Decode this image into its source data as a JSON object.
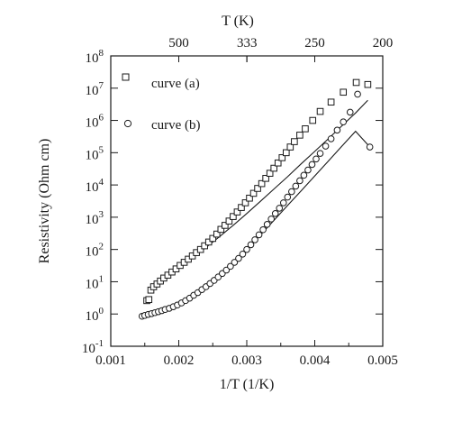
{
  "chart_data": {
    "type": "scatter",
    "title": "",
    "xlabel": "1/T (1/K)",
    "ylabel": "Resistivity (Ohm cm)",
    "x_top_label": "T (K)",
    "xlim": [
      0.001,
      0.005
    ],
    "ylim": [
      0.1,
      100000000
    ],
    "yscale": "log",
    "x_ticks": [
      "0.001",
      "0.002",
      "0.003",
      "0.004",
      "0.005"
    ],
    "x_top_ticks": [
      "500",
      "333",
      "250",
      "200"
    ],
    "y_tick_exponents": [
      "-1",
      "0",
      "1",
      "2",
      "3",
      "4",
      "5",
      "6",
      "7",
      "8"
    ],
    "y_tick_base": "10",
    "grid": false,
    "legend_position": "upper-left",
    "series": [
      {
        "name": "curve (a)",
        "marker": "square",
        "x": [
          0.00153,
          0.00156,
          0.00159,
          0.00163,
          0.00168,
          0.00173,
          0.00178,
          0.00184,
          0.0019,
          0.00196,
          0.00202,
          0.00208,
          0.00214,
          0.0022,
          0.00226,
          0.00232,
          0.00238,
          0.00244,
          0.0025,
          0.00256,
          0.00262,
          0.00268,
          0.00274,
          0.0028,
          0.00286,
          0.00292,
          0.00298,
          0.00304,
          0.0031,
          0.00316,
          0.00322,
          0.00328,
          0.00334,
          0.0034,
          0.00346,
          0.00352,
          0.00358,
          0.00364,
          0.0037,
          0.00378,
          0.00386,
          0.00397,
          0.00408,
          0.00424,
          0.00442,
          0.00461,
          0.00478
        ],
        "y": [
          2.6,
          2.8,
          5.5,
          7,
          8.5,
          10.5,
          13,
          16,
          20,
          25,
          32,
          40,
          50,
          63,
          80,
          100,
          130,
          170,
          220,
          300,
          420,
          560,
          760,
          1050,
          1450,
          2000,
          2800,
          3900,
          5500,
          7800,
          11000,
          16000,
          23000,
          33000,
          48000,
          70000,
          100000,
          150000,
          220000,
          350000,
          550000,
          1000000,
          1900000,
          3700000,
          7500000,
          15000000,
          13000000
        ]
      },
      {
        "name": "curve (b)",
        "marker": "circle",
        "x": [
          0.00146,
          0.0015,
          0.00155,
          0.0016,
          0.00165,
          0.0017,
          0.00175,
          0.0018,
          0.00186,
          0.00192,
          0.00198,
          0.00204,
          0.0021,
          0.00216,
          0.00222,
          0.00228,
          0.00234,
          0.0024,
          0.00246,
          0.00252,
          0.00258,
          0.00264,
          0.0027,
          0.00276,
          0.00282,
          0.00288,
          0.00294,
          0.003,
          0.00306,
          0.00312,
          0.00318,
          0.00324,
          0.0033,
          0.00336,
          0.00342,
          0.00348,
          0.00354,
          0.0036,
          0.00366,
          0.00372,
          0.00378,
          0.00384,
          0.0039,
          0.00396,
          0.00402,
          0.00408,
          0.00416,
          0.00424,
          0.00433,
          0.00442,
          0.00452,
          0.00463,
          0.00481
        ],
        "y": [
          0.85,
          0.9,
          0.97,
          1.03,
          1.1,
          1.18,
          1.27,
          1.38,
          1.5,
          1.68,
          1.9,
          2.2,
          2.6,
          3.1,
          3.8,
          4.6,
          5.7,
          7,
          8.8,
          11,
          14,
          18,
          23,
          30,
          40,
          53,
          72,
          100,
          140,
          200,
          285,
          410,
          600,
          880,
          1300,
          1900,
          2800,
          4200,
          6200,
          9200,
          13500,
          20000,
          29000,
          43000,
          64000,
          95000,
          160000,
          270000,
          500000,
          900000,
          1800000,
          6500000,
          150000
        ]
      }
    ],
    "fit_lines": [
      {
        "series": "curve (a)",
        "x": [
          0.00158,
          0.0017,
          0.0018,
          0.0019,
          0.002,
          0.0022,
          0.0024,
          0.0026,
          0.0028,
          0.003,
          0.0032,
          0.0034,
          0.0036,
          0.0038,
          0.004,
          0.0042,
          0.0044,
          0.0046,
          0.00478
        ],
        "y": [
          4.5,
          9,
          13.5,
          19,
          27,
          55,
          115,
          250,
          560,
          1300,
          3100,
          7500,
          18000,
          45000,
          110000,
          270000,
          680000,
          1700000,
          4200000
        ]
      },
      {
        "series": "curve (b)",
        "x": [
          0.00146,
          0.0016,
          0.0018,
          0.002,
          0.0022,
          0.0024,
          0.0026,
          0.0028,
          0.003,
          0.0032,
          0.0034,
          0.0036,
          0.0038,
          0.004,
          0.0042,
          0.0044,
          0.0046,
          0.00481
        ],
        "y": [
          0.85,
          1.02,
          1.38,
          2,
          3.3,
          6.5,
          15,
          37,
          100,
          280,
          800,
          2300,
          6600,
          19000,
          55000,
          160000,
          460000,
          150000
        ]
      }
    ]
  }
}
